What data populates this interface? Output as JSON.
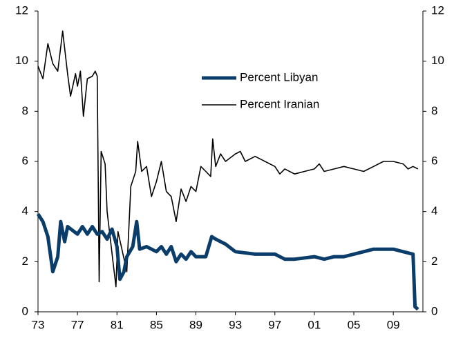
{
  "chart_data": {
    "type": "line",
    "xlim": [
      1973,
      2012
    ],
    "xticks": [
      {
        "value": 1973,
        "label": "73"
      },
      {
        "value": 1977,
        "label": "77"
      },
      {
        "value": 1981,
        "label": "81"
      },
      {
        "value": 1985,
        "label": "85"
      },
      {
        "value": 1989,
        "label": "89"
      },
      {
        "value": 1993,
        "label": "93"
      },
      {
        "value": 1997,
        "label": "97"
      },
      {
        "value": 2001,
        "label": "01"
      },
      {
        "value": 2005,
        "label": "05"
      },
      {
        "value": 2009,
        "label": "09"
      }
    ],
    "ylim": [
      0,
      12
    ],
    "yticks": [
      0,
      2,
      4,
      6,
      8,
      10,
      12
    ],
    "y2lim": [
      0,
      12
    ],
    "y2ticks": [
      0,
      2,
      4,
      6,
      8,
      10,
      12
    ],
    "legend": "upper center",
    "series": [
      {
        "name": "Percent Libyan",
        "color": "#0b3d6b",
        "width": 5,
        "x": [
          1973,
          1973.5,
          1974,
          1974.5,
          1975,
          1975.3,
          1975.7,
          1976,
          1977,
          1977.5,
          1978,
          1978.5,
          1979,
          1979.5,
          1980,
          1980.5,
          1981,
          1981.3,
          1981.7,
          1982,
          1982.6,
          1983,
          1983.3,
          1984,
          1985,
          1985.5,
          1986,
          1986.5,
          1987,
          1987.5,
          1988,
          1988.5,
          1989,
          1990,
          1990.6,
          1991,
          1992,
          1993,
          1995,
          1997,
          1998,
          1999,
          2001,
          2002,
          2003,
          2004,
          2005,
          2006,
          2007,
          2008,
          2009,
          2010,
          2011,
          2011.2,
          2011.5
        ],
        "values": [
          3.9,
          3.6,
          3.0,
          1.6,
          2.2,
          3.6,
          2.8,
          3.4,
          3.1,
          3.4,
          3.1,
          3.4,
          3.1,
          3.2,
          2.9,
          3.3,
          2.6,
          1.3,
          1.6,
          2.2,
          2.6,
          3.6,
          2.5,
          2.6,
          2.4,
          2.6,
          2.3,
          2.6,
          2.0,
          2.3,
          2.1,
          2.4,
          2.2,
          2.2,
          3.0,
          2.9,
          2.7,
          2.4,
          2.3,
          2.3,
          2.1,
          2.1,
          2.2,
          2.1,
          2.2,
          2.2,
          2.3,
          2.4,
          2.5,
          2.5,
          2.5,
          2.4,
          2.3,
          0.2,
          0.1
        ]
      },
      {
        "name": "Percent Iranian",
        "color": "#000000",
        "width": 1.6,
        "x": [
          1973,
          1973.5,
          1974,
          1974.5,
          1975,
          1975.5,
          1976,
          1976.3,
          1976.8,
          1977,
          1977.3,
          1977.6,
          1978,
          1978.5,
          1978.8,
          1979,
          1979.2,
          1979.4,
          1979.8,
          1980,
          1980.3,
          1980.6,
          1980.9,
          1981.1,
          1981.5,
          1982,
          1982.4,
          1982.9,
          1983.1,
          1983.5,
          1984,
          1984.5,
          1985,
          1985.5,
          1986,
          1986.5,
          1987,
          1987.5,
          1988,
          1988.5,
          1989,
          1989.5,
          1990,
          1990.5,
          1990.7,
          1991,
          1991.5,
          1992,
          1993,
          1993.5,
          1994,
          1995,
          1996,
          1997,
          1997.5,
          1998,
          1999,
          2000,
          2001,
          2001.5,
          2002,
          2003,
          2004,
          2005,
          2006,
          2007,
          2008,
          2009,
          2010,
          2010.5,
          2011,
          2011.5
        ],
        "values": [
          9.8,
          9.3,
          10.7,
          9.9,
          9.6,
          11.2,
          9.5,
          8.6,
          9.5,
          9.0,
          9.6,
          7.8,
          9.3,
          9.4,
          9.6,
          9.4,
          1.2,
          6.4,
          5.9,
          4.0,
          3.0,
          2.0,
          1.0,
          3.2,
          2.5,
          1.6,
          5.0,
          5.6,
          6.8,
          5.6,
          5.8,
          4.6,
          5.2,
          6.0,
          4.8,
          4.6,
          3.6,
          4.9,
          4.4,
          5.0,
          4.8,
          5.8,
          5.6,
          5.4,
          6.9,
          5.8,
          6.3,
          6.0,
          6.3,
          6.4,
          6.0,
          6.2,
          6.0,
          5.8,
          5.5,
          5.7,
          5.5,
          5.6,
          5.7,
          5.9,
          5.6,
          5.7,
          5.8,
          5.7,
          5.6,
          5.8,
          6.0,
          6.0,
          5.9,
          5.7,
          5.8,
          5.7
        ]
      }
    ]
  }
}
